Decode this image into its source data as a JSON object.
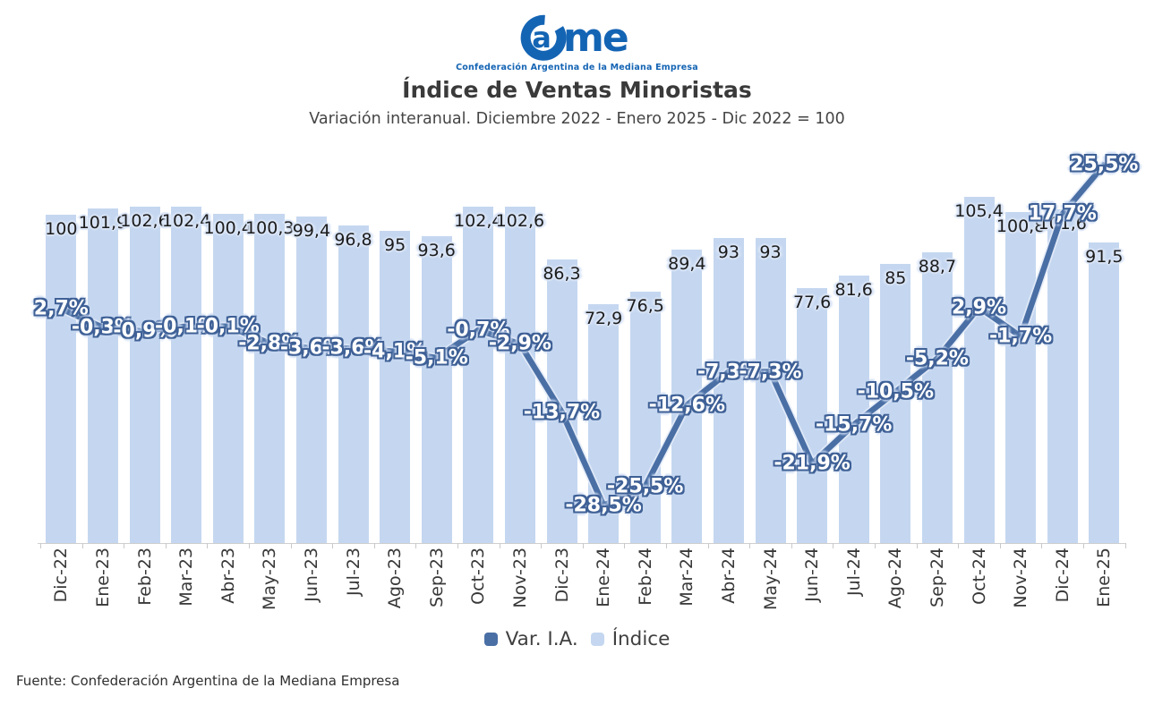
{
  "logo": {
    "wordmark": "Came",
    "wordmark_a": "a",
    "wordmark_me": "me",
    "subtitle": "Confederación Argentina de la Mediana Empresa",
    "color": "#1464b4"
  },
  "header": {
    "title": "Índice de Ventas Minoristas",
    "subtitle": "Variación interanual. Diciembre 2022 - Enero 2025 - Dic 2022 = 100"
  },
  "chart_data": {
    "type": "bar+line",
    "title": "Índice de Ventas Minoristas",
    "subtitle": "Variación interanual. Diciembre 2022 - Enero 2025 - Dic 2022 = 100",
    "grid": "off",
    "legend_position": "bottom",
    "categories": [
      "Dic-22",
      "Ene-23",
      "Feb-23",
      "Mar-23",
      "Abr-23",
      "May-23",
      "Jun-23",
      "Jul-23",
      "Ago-23",
      "Sep-23",
      "Oct-23",
      "Nov-23",
      "Dic-23",
      "Ene-24",
      "Feb-24",
      "Mar-24",
      "Abr-24",
      "May-24",
      "Jun-24",
      "Jul-24",
      "Ago-24",
      "Sep-24",
      "Oct-24",
      "Nov-24",
      "Dic-24",
      "Ene-25"
    ],
    "series": [
      {
        "name": "Índice",
        "type": "bar",
        "color": "#c5d7f0",
        "axis_range": [
          0,
          133
        ],
        "values": [
          100,
          101.9,
          102.6,
          102.4,
          100.4,
          100.3,
          99.4,
          96.8,
          95,
          93.6,
          102.4,
          102.6,
          86.3,
          72.9,
          76.5,
          89.4,
          93,
          93,
          77.6,
          81.6,
          85,
          88.7,
          105.4,
          100.8,
          101.6,
          91.5
        ],
        "labels": [
          "100",
          "101,9",
          "102,6",
          "102,4",
          "100,4",
          "100,3",
          "99,4",
          "96,8",
          "95",
          "93,6",
          "102,4",
          "102,6",
          "86,3",
          "72,9",
          "76,5",
          "89,4",
          "93",
          "93",
          "77,6",
          "81,6",
          "85",
          "88,7",
          "105,4",
          "100,8",
          "101,6",
          "91,5"
        ]
      },
      {
        "name": "Var. I.A.",
        "type": "line",
        "color": "#4a6fa5",
        "unit": "%",
        "axis_range": [
          -35,
          35
        ],
        "values": [
          2.7,
          -0.3,
          -0.9,
          -0.1,
          -0.1,
          -2.8,
          -3.6,
          -3.6,
          -4.1,
          -5.1,
          -0.7,
          -2.9,
          -13.7,
          -28.5,
          -25.5,
          -12.6,
          -7.3,
          -7.3,
          -21.9,
          -15.7,
          -10.5,
          -5.2,
          2.9,
          -1.7,
          17.7,
          25.5
        ],
        "labels": [
          "2,7%",
          "-0,3%",
          "-0,9%",
          "-0,1%",
          "-0,1%",
          "-2,8%",
          "-3,6%",
          "-3,6%",
          "-4,1%",
          "-5,1%",
          "-0,7%",
          "-2,9%",
          "-13,7%",
          "-28,5%",
          "-25,5%",
          "-12,6%",
          "-7,3%",
          "-7,3%",
          "-21,9%",
          "-15,7%",
          "-10,5%",
          "-5,2%",
          "2,9%",
          "-1,7%",
          "17,7%",
          "25,5%"
        ]
      }
    ]
  },
  "legend": {
    "items": [
      {
        "label": "Var. I.A.",
        "color": "#4a6fa5"
      },
      {
        "label": "Índice",
        "color": "#c5d7f0"
      }
    ]
  },
  "footer": {
    "text": "Fuente: Confederación Argentina de la Mediana Empresa"
  }
}
